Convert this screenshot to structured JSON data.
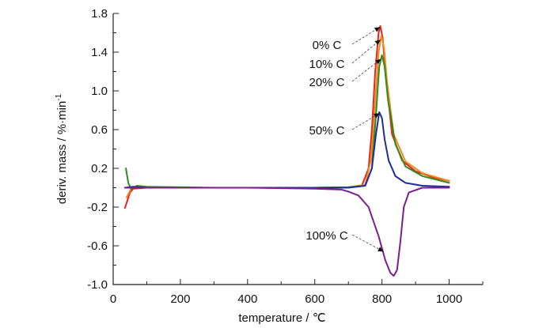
{
  "chart_data": {
    "type": "line",
    "title": "",
    "xlabel": "temperature / ℃",
    "ylabel_main": "deriv. mass / %·min",
    "ylabel_sup": "-1",
    "xlim": [
      0,
      1100
    ],
    "ylim": [
      -1.0,
      1.8
    ],
    "x_ticks": [
      0,
      200,
      400,
      600,
      800,
      1000
    ],
    "x_tick_labels": [
      "0",
      "200",
      "400",
      "600",
      "800",
      "1000"
    ],
    "y_ticks": [
      -1.0,
      -0.6,
      -0.2,
      0.2,
      0.6,
      1.0,
      1.4,
      1.8
    ],
    "y_tick_labels": [
      "-1.0",
      "-0.6",
      "-0.2",
      "0.2",
      "0.6",
      "1.0",
      "1.4",
      "1.8"
    ],
    "grid": false,
    "series": [
      {
        "name": "0% C",
        "color": "#e8241c",
        "points": [
          [
            35,
            -0.21
          ],
          [
            50,
            -0.05
          ],
          [
            60,
            -0.01
          ],
          [
            100,
            0.0
          ],
          [
            300,
            0.0
          ],
          [
            600,
            0.0
          ],
          [
            700,
            0.005
          ],
          [
            740,
            0.02
          ],
          [
            760,
            0.2
          ],
          [
            770,
            0.6
          ],
          [
            780,
            1.2
          ],
          [
            790,
            1.6
          ],
          [
            795,
            1.67
          ],
          [
            802,
            1.55
          ],
          [
            810,
            1.2
          ],
          [
            830,
            0.55
          ],
          [
            860,
            0.28
          ],
          [
            900,
            0.17
          ],
          [
            950,
            0.11
          ],
          [
            1000,
            0.07
          ]
        ]
      },
      {
        "name": "10% C",
        "color": "#f08a1c",
        "points": [
          [
            40,
            -0.1
          ],
          [
            55,
            0.0
          ],
          [
            100,
            0.0
          ],
          [
            300,
            0.0
          ],
          [
            600,
            0.0
          ],
          [
            700,
            0.005
          ],
          [
            750,
            0.03
          ],
          [
            768,
            0.3
          ],
          [
            780,
            0.9
          ],
          [
            790,
            1.4
          ],
          [
            798,
            1.57
          ],
          [
            806,
            1.45
          ],
          [
            815,
            1.1
          ],
          [
            835,
            0.55
          ],
          [
            870,
            0.27
          ],
          [
            920,
            0.15
          ],
          [
            1000,
            0.07
          ]
        ]
      },
      {
        "name": "20% C",
        "color": "#2e8b1e",
        "points": [
          [
            38,
            0.2
          ],
          [
            45,
            0.05
          ],
          [
            55,
            -0.02
          ],
          [
            70,
            0.02
          ],
          [
            100,
            0.01
          ],
          [
            300,
            0.0
          ],
          [
            600,
            0.0
          ],
          [
            700,
            0.005
          ],
          [
            750,
            0.02
          ],
          [
            770,
            0.2
          ],
          [
            782,
            0.75
          ],
          [
            792,
            1.25
          ],
          [
            800,
            1.37
          ],
          [
            808,
            1.25
          ],
          [
            818,
            0.9
          ],
          [
            840,
            0.45
          ],
          [
            870,
            0.22
          ],
          [
            920,
            0.12
          ],
          [
            1000,
            0.05
          ]
        ]
      },
      {
        "name": "50% C",
        "color": "#1e2e96",
        "points": [
          [
            35,
            0.0
          ],
          [
            60,
            0.01
          ],
          [
            100,
            0.0
          ],
          [
            300,
            0.0
          ],
          [
            600,
            0.0
          ],
          [
            700,
            0.0
          ],
          [
            750,
            0.02
          ],
          [
            770,
            0.2
          ],
          [
            782,
            0.55
          ],
          [
            792,
            0.78
          ],
          [
            800,
            0.72
          ],
          [
            808,
            0.5
          ],
          [
            820,
            0.28
          ],
          [
            840,
            0.12
          ],
          [
            870,
            0.05
          ],
          [
            920,
            0.02
          ],
          [
            1000,
            0.01
          ]
        ]
      },
      {
        "name": "100% C",
        "color": "#7b1e8e",
        "points": [
          [
            35,
            0.0
          ],
          [
            100,
            0.0
          ],
          [
            400,
            0.0
          ],
          [
            600,
            -0.01
          ],
          [
            680,
            -0.02
          ],
          [
            700,
            -0.04
          ],
          [
            730,
            -0.08
          ],
          [
            760,
            -0.2
          ],
          [
            790,
            -0.5
          ],
          [
            810,
            -0.75
          ],
          [
            825,
            -0.88
          ],
          [
            835,
            -0.91
          ],
          [
            845,
            -0.85
          ],
          [
            855,
            -0.55
          ],
          [
            865,
            -0.2
          ],
          [
            880,
            -0.05
          ],
          [
            920,
            0.0
          ],
          [
            1000,
            0.0
          ]
        ]
      }
    ],
    "annotations": [
      {
        "label": "0% C",
        "series": "0% C",
        "arrow_to": [
          795,
          1.66
        ]
      },
      {
        "label": "10% C",
        "series": "10% C",
        "arrow_to": [
          796,
          1.53
        ]
      },
      {
        "label": "20% C",
        "series": "20% C",
        "arrow_to": [
          797,
          1.33
        ]
      },
      {
        "label": "50% C",
        "series": "50% C",
        "arrow_to": [
          793,
          0.77
        ]
      },
      {
        "label": "100% C",
        "series": "100% C",
        "arrow_to": [
          805,
          -0.66
        ]
      }
    ]
  }
}
